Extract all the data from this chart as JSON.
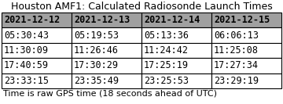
{
  "title": "Houston AMF1: Calculated Radiosonde Launch Times",
  "footer": "Time is raw GPS time (18 seconds ahead of UTC)",
  "headers": [
    "2021-12-12",
    "2021-12-13",
    "2021-12-14",
    "2021-12-15"
  ],
  "rows": [
    [
      "05:30:43",
      "05:19:53",
      "05:13:36",
      "06:06:13"
    ],
    [
      "11:30:09",
      "11:26:46",
      "11:24:42",
      "11:25:08"
    ],
    [
      "17:40:59",
      "17:30:29",
      "17:25:19",
      "17:27:34"
    ],
    [
      "23:33:15",
      "23:35:49",
      "23:25:53",
      "23:29:19"
    ]
  ],
  "header_bg": "#a0a0a0",
  "header_text": "#000000",
  "row_bg": "#ffffff",
  "border_color": "#000000",
  "title_fontsize": 9.0,
  "cell_fontsize": 8.5,
  "footer_fontsize": 8.0,
  "figsize": [
    3.6,
    1.33
  ],
  "dpi": 100
}
